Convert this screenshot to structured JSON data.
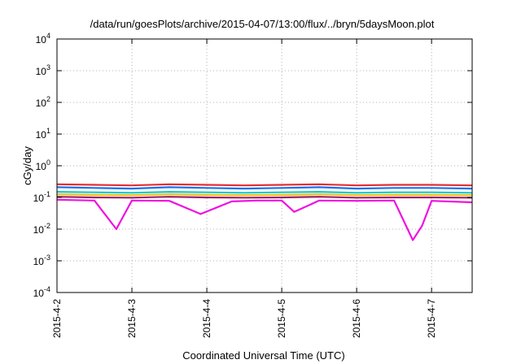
{
  "chart_data": {
    "type": "line",
    "title": "/data/run/goesPlots/archive/2015-04-07/13:00/flux/../bryn/5daysMoon.plot",
    "xlabel": "Coordinated Universal Time (UTC)",
    "ylabel": "cGy/day",
    "yscale": "log",
    "ylim": [
      0.0001,
      10000
    ],
    "xlim": [
      "2015-04-02T00:00",
      "2015-04-07T13:00"
    ],
    "y_ticks": [
      {
        "base": "10",
        "exp": "-4",
        "value": 0.0001
      },
      {
        "base": "10",
        "exp": "-3",
        "value": 0.001
      },
      {
        "base": "10",
        "exp": "-2",
        "value": 0.01
      },
      {
        "base": "10",
        "exp": "-1",
        "value": 0.1
      },
      {
        "base": "10",
        "exp": "0",
        "value": 1
      },
      {
        "base": "10",
        "exp": "1",
        "value": 10
      },
      {
        "base": "10",
        "exp": "2",
        "value": 100
      },
      {
        "base": "10",
        "exp": "3",
        "value": 1000
      },
      {
        "base": "10",
        "exp": "4",
        "value": 10000
      }
    ],
    "x_ticks": [
      "2015-4-2",
      "2015-4-3",
      "2015-4-4",
      "2015-4-5",
      "2015-4-6",
      "2015-4-7"
    ],
    "grid": true,
    "legend": "none",
    "series": [
      {
        "color": "#e0302f",
        "x": [
          "2015-04-02T00:00",
          "2015-04-02T12:00",
          "2015-04-03T00:00",
          "2015-04-03T12:00",
          "2015-04-04T00:00",
          "2015-04-04T12:00",
          "2015-04-05T00:00",
          "2015-04-05T12:00",
          "2015-04-06T00:00",
          "2015-04-06T12:00",
          "2015-04-07T00:00",
          "2015-04-07T13:00"
        ],
        "y": [
          0.26,
          0.25,
          0.24,
          0.26,
          0.25,
          0.24,
          0.25,
          0.26,
          0.24,
          0.25,
          0.25,
          0.24
        ]
      },
      {
        "color": "#1f6ff0",
        "x": [
          "2015-04-02T00:00",
          "2015-04-02T12:00",
          "2015-04-03T00:00",
          "2015-04-03T12:00",
          "2015-04-04T00:00",
          "2015-04-04T12:00",
          "2015-04-05T00:00",
          "2015-04-05T12:00",
          "2015-04-06T00:00",
          "2015-04-06T12:00",
          "2015-04-07T00:00",
          "2015-04-07T13:00"
        ],
        "y": [
          0.21,
          0.2,
          0.19,
          0.21,
          0.2,
          0.19,
          0.2,
          0.21,
          0.19,
          0.2,
          0.2,
          0.19
        ]
      },
      {
        "color": "#18c8c8",
        "x": [
          "2015-04-02T00:00",
          "2015-04-02T12:00",
          "2015-04-03T00:00",
          "2015-04-03T12:00",
          "2015-04-04T00:00",
          "2015-04-04T12:00",
          "2015-04-05T00:00",
          "2015-04-05T12:00",
          "2015-04-06T00:00",
          "2015-04-06T12:00",
          "2015-04-07T00:00",
          "2015-04-07T13:00"
        ],
        "y": [
          0.15,
          0.145,
          0.14,
          0.15,
          0.145,
          0.14,
          0.145,
          0.15,
          0.14,
          0.145,
          0.145,
          0.14
        ]
      },
      {
        "color": "#e8c020",
        "x": [
          "2015-04-02T00:00",
          "2015-04-02T12:00",
          "2015-04-03T00:00",
          "2015-04-03T12:00",
          "2015-04-04T00:00",
          "2015-04-04T12:00",
          "2015-04-05T00:00",
          "2015-04-05T12:00",
          "2015-04-06T00:00",
          "2015-04-06T12:00",
          "2015-04-07T00:00",
          "2015-04-07T13:00"
        ],
        "y": [
          0.125,
          0.12,
          0.118,
          0.125,
          0.12,
          0.118,
          0.12,
          0.125,
          0.118,
          0.12,
          0.12,
          0.118
        ]
      },
      {
        "color": "#a02060",
        "x": [
          "2015-04-02T00:00",
          "2015-04-02T12:00",
          "2015-04-03T00:00",
          "2015-04-03T12:00",
          "2015-04-04T00:00",
          "2015-04-04T12:00",
          "2015-04-05T00:00",
          "2015-04-05T12:00",
          "2015-04-06T00:00",
          "2015-04-06T12:00",
          "2015-04-07T00:00",
          "2015-04-07T13:00"
        ],
        "y": [
          0.105,
          0.1,
          0.098,
          0.105,
          0.1,
          0.098,
          0.1,
          0.105,
          0.098,
          0.1,
          0.1,
          0.098
        ]
      },
      {
        "color": "#f010e0",
        "x": [
          "2015-04-02T00:00",
          "2015-04-02T12:00",
          "2015-04-02T19:00",
          "2015-04-03T00:00",
          "2015-04-03T12:00",
          "2015-04-03T22:00",
          "2015-04-04T08:00",
          "2015-04-04T16:00",
          "2015-04-05T00:00",
          "2015-04-05T04:00",
          "2015-04-05T12:00",
          "2015-04-06T00:00",
          "2015-04-06T12:00",
          "2015-04-06T18:00",
          "2015-04-06T21:00",
          "2015-04-07T00:00",
          "2015-04-07T13:00"
        ],
        "y": [
          0.085,
          0.08,
          0.01,
          0.08,
          0.078,
          0.03,
          0.075,
          0.08,
          0.08,
          0.035,
          0.08,
          0.078,
          0.08,
          0.0045,
          0.013,
          0.078,
          0.07
        ]
      }
    ]
  }
}
